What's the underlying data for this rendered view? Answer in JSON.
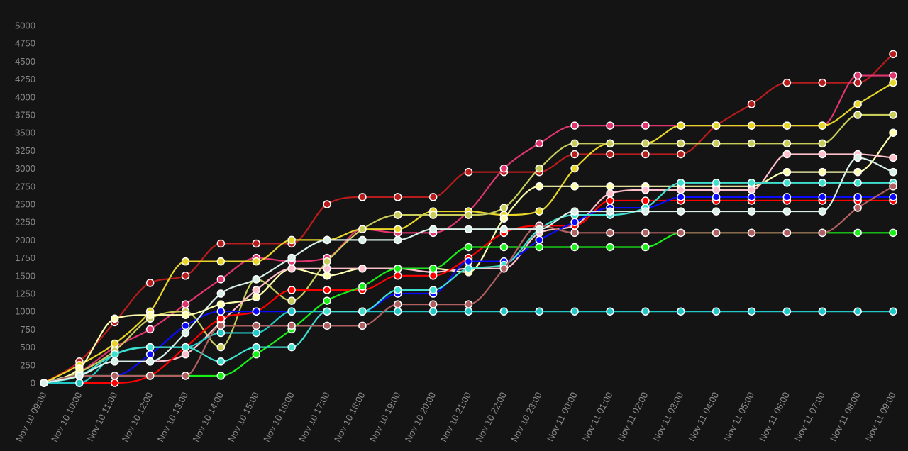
{
  "chart_data": {
    "type": "line",
    "title": "",
    "xlabel": "",
    "ylabel": "",
    "ylim": [
      0,
      5000
    ],
    "yticks": [
      0,
      250,
      500,
      750,
      1000,
      1250,
      1500,
      1750,
      2000,
      2250,
      2500,
      2750,
      3000,
      3250,
      3500,
      3750,
      4000,
      4250,
      4500,
      4750,
      5000
    ],
    "grid": false,
    "legend": "none",
    "categories": [
      "Nov 10 09:00",
      "Nov 10 10:00",
      "Nov 10 11:00",
      "Nov 10 12:00",
      "Nov 10 13:00",
      "Nov 10 14:00",
      "Nov 10 15:00",
      "Nov 10 16:00",
      "Nov 10 17:00",
      "Nov 10 18:00",
      "Nov 10 19:00",
      "Nov 10 20:00",
      "Nov 10 21:00",
      "Nov 10 22:00",
      "Nov 10 23:00",
      "Nov 11 00:00",
      "Nov 11 01:00",
      "Nov 11 02:00",
      "Nov 11 03:00",
      "Nov 11 04:00",
      "Nov 11 05:00",
      "Nov 11 06:00",
      "Nov 11 07:00",
      "Nov 11 08:00",
      "Nov 11 09:00"
    ],
    "series": [
      {
        "color": "#b81c1c",
        "values": [
          0,
          300,
          850,
          1400,
          1500,
          1950,
          1950,
          1950,
          2500,
          2600,
          2600,
          2600,
          2950,
          2950,
          2950,
          3200,
          3200,
          3200,
          3200,
          3600,
          3900,
          4200,
          4200,
          4200,
          4600
        ]
      },
      {
        "color": "#e0356e",
        "values": [
          0,
          150,
          500,
          750,
          1100,
          1450,
          1750,
          1700,
          1750,
          2150,
          2100,
          2100,
          2400,
          3000,
          3350,
          3600,
          3600,
          3600,
          3600,
          3600,
          3600,
          3600,
          3600,
          4300,
          4300
        ]
      },
      {
        "color": "#e8d628",
        "values": [
          0,
          250,
          550,
          1000,
          1700,
          1700,
          1700,
          2000,
          2000,
          2150,
          2150,
          2400,
          2400,
          2350,
          2400,
          3000,
          3350,
          3350,
          3600,
          3600,
          3600,
          3600,
          3600,
          3900,
          4200
        ]
      },
      {
        "color": "#c8cd5a",
        "values": [
          0,
          150,
          450,
          900,
          1000,
          500,
          1450,
          1150,
          1700,
          2150,
          2350,
          2350,
          2350,
          2450,
          3000,
          3350,
          3350,
          3350,
          3350,
          3350,
          3350,
          3350,
          3350,
          3750,
          3750
        ]
      },
      {
        "color": "#ffffb0",
        "values": [
          0,
          200,
          900,
          950,
          950,
          1100,
          1200,
          1600,
          1500,
          1600,
          1600,
          1600,
          1550,
          2300,
          2750,
          2750,
          2750,
          2750,
          2750,
          2750,
          2750,
          2950,
          2950,
          2950,
          3500
        ]
      },
      {
        "color": "#ffc0cb",
        "values": [
          0,
          100,
          300,
          300,
          400,
          850,
          1300,
          1600,
          1600,
          1600,
          1600,
          1550,
          1600,
          1600,
          2100,
          2200,
          2650,
          2700,
          2700,
          2700,
          2700,
          3200,
          3200,
          3200,
          3150
        ]
      },
      {
        "color": "#ff0000",
        "values": [
          0,
          0,
          0,
          100,
          500,
          900,
          1000,
          1300,
          1300,
          1300,
          1500,
          1500,
          1750,
          2100,
          2200,
          2200,
          2550,
          2550,
          2550,
          2550,
          2550,
          2550,
          2550,
          2550,
          2550
        ]
      },
      {
        "color": "#0a0aff",
        "values": [
          0,
          100,
          100,
          400,
          800,
          1000,
          1000,
          1000,
          1000,
          1000,
          1250,
          1250,
          1700,
          1700,
          2000,
          2250,
          2450,
          2450,
          2600,
          2600,
          2600,
          2600,
          2600,
          2600,
          2600
        ]
      },
      {
        "color": "#18f018",
        "values": [
          0,
          100,
          100,
          100,
          100,
          100,
          400,
          750,
          1150,
          1350,
          1600,
          1600,
          1900,
          1900,
          1900,
          1900,
          1900,
          1900,
          2100,
          2100,
          2100,
          2100,
          2100,
          2100,
          2100
        ]
      },
      {
        "color": "#20c8c8",
        "values": [
          0,
          0,
          400,
          500,
          500,
          700,
          700,
          1000,
          1000,
          1000,
          1000,
          1000,
          1000,
          1000,
          1000,
          1000,
          1000,
          1000,
          1000,
          1000,
          1000,
          1000,
          1000,
          1000,
          1000
        ]
      },
      {
        "color": "#40e0d0",
        "values": [
          0,
          100,
          400,
          500,
          500,
          300,
          500,
          500,
          1000,
          1000,
          1300,
          1300,
          1600,
          1650,
          2150,
          2350,
          2350,
          2450,
          2800,
          2800,
          2800,
          2800,
          2800,
          2800,
          2800
        ]
      },
      {
        "color": "#b06060",
        "values": [
          0,
          100,
          100,
          100,
          100,
          800,
          800,
          800,
          800,
          800,
          1100,
          1100,
          1100,
          1600,
          2200,
          2100,
          2100,
          2100,
          2100,
          2100,
          2100,
          2100,
          2100,
          2450,
          2750
        ]
      },
      {
        "color": "#d8f0e8",
        "values": [
          0,
          100,
          300,
          300,
          700,
          1250,
          1450,
          1750,
          2000,
          2000,
          2000,
          2150,
          2150,
          2150,
          2150,
          2400,
          2400,
          2400,
          2400,
          2400,
          2400,
          2400,
          2400,
          3150,
          2950
        ]
      }
    ]
  }
}
